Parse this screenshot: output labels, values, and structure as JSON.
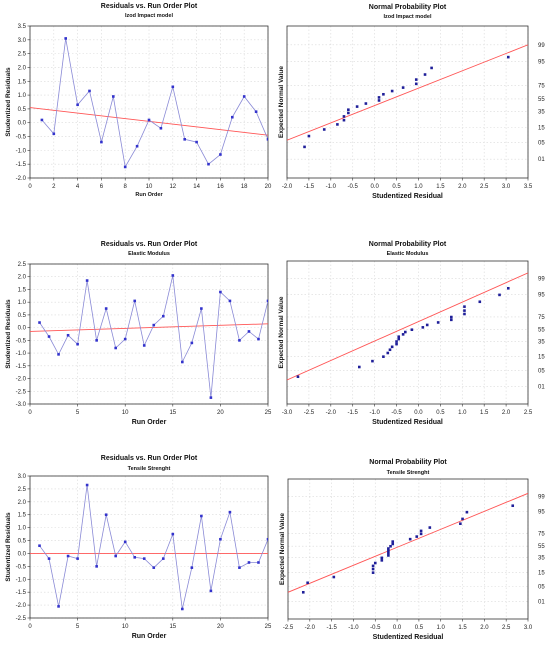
{
  "chart_data": [
    {
      "type": "line",
      "title": "Residuals vs. Run Order Plot",
      "subtitle": "Izod Impact model",
      "xlabel": "Run Order",
      "ylabel": "Studentized Residuals",
      "xlim": [
        0,
        20
      ],
      "ylim": [
        -2.0,
        3.5
      ],
      "xticks": [
        0,
        2,
        4,
        6,
        8,
        10,
        12,
        14,
        16,
        18,
        20
      ],
      "yticks": [
        -2.0,
        -1.5,
        -1.0,
        -0.5,
        0.0,
        0.5,
        1.0,
        1.5,
        2.0,
        2.5,
        3.0,
        3.5
      ],
      "x": [
        1,
        2,
        3,
        4,
        5,
        6,
        7,
        8,
        9,
        10,
        11,
        12,
        13,
        14,
        15,
        16,
        17,
        18,
        19,
        20
      ],
      "y": [
        0.1,
        -0.4,
        3.05,
        0.65,
        1.15,
        -0.7,
        0.95,
        -1.6,
        -0.85,
        0.1,
        -0.2,
        1.3,
        -0.6,
        -0.7,
        -1.5,
        -1.15,
        0.2,
        0.95,
        0.4,
        -0.6
      ],
      "trend": [
        [
          0,
          0.55
        ],
        [
          20,
          -0.45
        ]
      ],
      "grid": true,
      "colors": {
        "series": "#3333cc",
        "trend": "#ff5555"
      }
    },
    {
      "type": "scatter",
      "title": "Normal Probability Plot",
      "subtitle": "Izod Impact model",
      "xlabel": "Studentized Residual",
      "ylabel": "Expected Normal Value",
      "xlim": [
        -2.0,
        3.5
      ],
      "xticks": [
        -2.0,
        -1.5,
        -1.0,
        -0.5,
        0.0,
        0.5,
        1.0,
        1.5,
        2.0,
        2.5,
        3.0,
        3.5
      ],
      "ylim": [
        0.1,
        99.9
      ],
      "yscale": "probability",
      "yticks": [
        1,
        5,
        15,
        35,
        55,
        75,
        95,
        99
      ],
      "yticklabels": [
        "01",
        "05",
        "15",
        "35",
        "55",
        "75",
        "95",
        "99"
      ],
      "x": [
        -1.6,
        -1.5,
        -1.15,
        -0.85,
        -0.7,
        -0.7,
        -0.6,
        -0.6,
        -0.4,
        -0.2,
        0.1,
        0.1,
        0.2,
        0.4,
        0.65,
        0.95,
        0.95,
        1.15,
        1.3,
        3.05
      ],
      "y": [
        3.4,
        8.3,
        13.2,
        18.1,
        23.0,
        27.9,
        32.8,
        37.7,
        42.6,
        47.5,
        52.5,
        57.4,
        62.3,
        67.2,
        72.1,
        77.0,
        81.9,
        86.8,
        91.7,
        96.6
      ],
      "fit_line": [
        [
          -2.0,
          6.0
        ],
        [
          3.5,
          99.0
        ]
      ],
      "grid": true,
      "colors": {
        "points": "#1f1f99",
        "fit": "#ff5555"
      }
    },
    {
      "type": "line",
      "title": "Residuals vs. Run Order Plot",
      "subtitle": "Elastic Modulus",
      "xlabel": "Run Order",
      "ylabel": "Studentized Residuals",
      "xlim": [
        0,
        25
      ],
      "ylim": [
        -3.0,
        2.5
      ],
      "xticks": [
        0,
        5,
        10,
        15,
        20,
        25
      ],
      "yticks": [
        -3.0,
        -2.5,
        -2.0,
        -1.5,
        -1.0,
        -0.5,
        0.0,
        0.5,
        1.0,
        1.5,
        2.0,
        2.5
      ],
      "x": [
        1,
        2,
        3,
        4,
        5,
        6,
        7,
        8,
        9,
        10,
        11,
        12,
        13,
        14,
        15,
        16,
        17,
        18,
        19,
        20,
        21,
        22,
        23,
        24,
        25
      ],
      "y": [
        0.2,
        -0.35,
        -1.05,
        -0.3,
        -0.65,
        1.85,
        -0.5,
        0.75,
        -0.8,
        -0.45,
        1.05,
        -0.7,
        0.1,
        0.45,
        2.05,
        -1.35,
        -0.6,
        0.75,
        -2.75,
        1.4,
        1.05,
        -0.5,
        -0.15,
        -0.45,
        1.05
      ],
      "trend": [
        [
          0,
          -0.15
        ],
        [
          25,
          0.15
        ]
      ],
      "grid": true,
      "colors": {
        "series": "#3333cc",
        "trend": "#ff5555"
      }
    },
    {
      "type": "scatter",
      "title": "Normal Probability Plot",
      "subtitle": "Elastic Modulus",
      "xlabel": "Studentized Residual",
      "ylabel": "Expected Normal Value",
      "xlim": [
        -3.0,
        2.5
      ],
      "xticks": [
        -3.0,
        -2.5,
        -2.0,
        -1.5,
        -1.0,
        -0.5,
        0.0,
        0.5,
        1.0,
        1.5,
        2.0,
        2.5
      ],
      "ylim": [
        0.1,
        99.9
      ],
      "yscale": "probability",
      "yticks": [
        1,
        5,
        15,
        35,
        55,
        75,
        95,
        99
      ],
      "yticklabels": [
        "01",
        "05",
        "15",
        "35",
        "55",
        "75",
        "95",
        "99"
      ],
      "x": [
        -2.75,
        -1.35,
        -1.05,
        -0.8,
        -0.7,
        -0.65,
        -0.6,
        -0.5,
        -0.5,
        -0.45,
        -0.45,
        -0.35,
        -0.3,
        -0.15,
        0.1,
        0.2,
        0.45,
        0.75,
        0.75,
        1.05,
        1.05,
        1.05,
        1.4,
        1.85,
        2.05
      ],
      "y": [
        2.8,
        6.8,
        10.8,
        14.8,
        18.8,
        22.8,
        26.8,
        30.8,
        34.8,
        38.8,
        42.8,
        46.8,
        50.8,
        54.8,
        58.8,
        62.8,
        66.8,
        70.8,
        74.8,
        78.8,
        82.8,
        86.8,
        90.8,
        94.8,
        97.2
      ],
      "fit_line": [
        [
          -3.0,
          2.0
        ],
        [
          2.5,
          99.5
        ]
      ],
      "grid": true,
      "colors": {
        "points": "#1f1f99",
        "fit": "#ff5555"
      }
    },
    {
      "type": "line",
      "title": "Residuals vs. Run Order Plot",
      "subtitle": "Tensile Strenght",
      "xlabel": "Run Order",
      "ylabel": "Studentized Residuals",
      "xlim": [
        0,
        25
      ],
      "ylim": [
        -2.5,
        3.0
      ],
      "xticks": [
        0,
        5,
        10,
        15,
        20,
        25
      ],
      "yticks": [
        -2.5,
        -2.0,
        -1.5,
        -1.0,
        -0.5,
        0.0,
        0.5,
        1.0,
        1.5,
        2.0,
        2.5,
        3.0
      ],
      "x": [
        1,
        2,
        3,
        4,
        5,
        6,
        7,
        8,
        9,
        10,
        11,
        12,
        13,
        14,
        15,
        16,
        17,
        18,
        19,
        20,
        21,
        22,
        23,
        24,
        25
      ],
      "y": [
        0.3,
        -0.2,
        -2.05,
        -0.1,
        -0.2,
        2.65,
        -0.5,
        1.5,
        -0.1,
        0.45,
        -0.15,
        -0.2,
        -0.55,
        -0.2,
        0.75,
        -2.15,
        -0.55,
        1.45,
        -1.45,
        0.55,
        1.6,
        -0.55,
        -0.35,
        -0.35,
        0.55
      ],
      "trend": [
        [
          0,
          0.0
        ],
        [
          25,
          0.0
        ]
      ],
      "grid": true,
      "colors": {
        "series": "#3333cc",
        "trend": "#ff5555"
      }
    },
    {
      "type": "scatter",
      "title": "Normal Probability Plot",
      "subtitle": "Tensile Strenght",
      "xlabel": "Studentized Residual",
      "ylabel": "Expected Normal Value",
      "xlim": [
        -2.5,
        3.0
      ],
      "xticks": [
        -2.5,
        -2.0,
        -1.5,
        -1.0,
        -0.5,
        0.0,
        0.5,
        1.0,
        1.5,
        2.0,
        2.5,
        3.0
      ],
      "ylim": [
        0.1,
        99.9
      ],
      "yscale": "probability",
      "yticks": [
        1,
        5,
        15,
        35,
        55,
        75,
        95,
        99
      ],
      "yticklabels": [
        "01",
        "05",
        "15",
        "35",
        "55",
        "75",
        "95",
        "99"
      ],
      "x": [
        -2.15,
        -2.05,
        -1.45,
        -0.55,
        -0.55,
        -0.55,
        -0.5,
        -0.35,
        -0.35,
        -0.2,
        -0.2,
        -0.2,
        -0.2,
        -0.15,
        -0.1,
        -0.1,
        0.3,
        0.45,
        0.55,
        0.55,
        0.75,
        1.45,
        1.5,
        1.6,
        2.65
      ],
      "y": [
        2.8,
        6.8,
        10.8,
        14.8,
        18.8,
        22.8,
        26.8,
        30.8,
        34.8,
        38.8,
        42.8,
        46.8,
        50.8,
        54.8,
        58.8,
        62.8,
        66.8,
        70.8,
        74.8,
        78.8,
        82.8,
        86.8,
        90.8,
        94.8,
        97.2
      ],
      "fit_line": [
        [
          -2.5,
          2.8
        ],
        [
          3.0,
          99.3
        ]
      ],
      "grid": true,
      "colors": {
        "points": "#1f1f99",
        "fit": "#ff5555"
      }
    }
  ]
}
